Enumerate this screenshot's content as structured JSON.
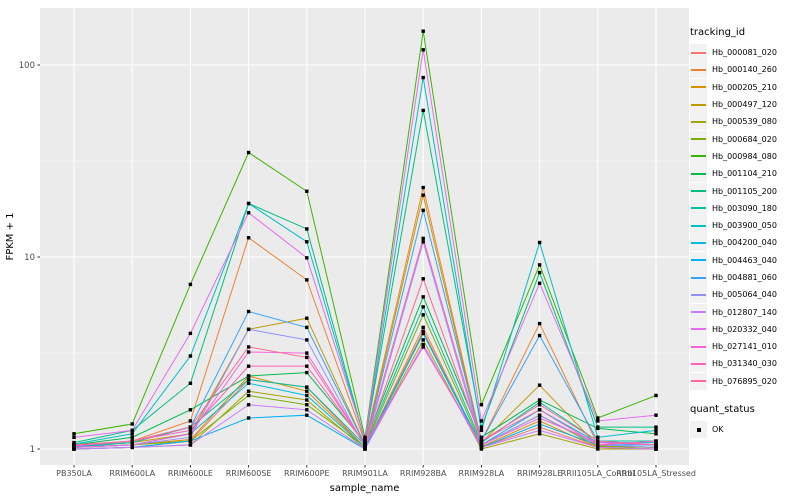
{
  "figure": {
    "background": "#FFFFFF",
    "panel_background": "#EBEBEB",
    "grid_color": "#FFFFFF",
    "tick_color": "#333333",
    "tick_label_color": "#4D4D4D",
    "axis_title_color": "#000000"
  },
  "axes": {
    "x_title": "sample_name",
    "y_title": "FPKM + 1"
  },
  "legend": {
    "color_title": "tracking_id",
    "shape_title": "quant_status",
    "key_background": "#F2F2F2",
    "shape_items": [
      {
        "label": "OK",
        "shape": "square",
        "color": "#000000"
      }
    ]
  },
  "chart_data": {
    "type": "line",
    "title": "",
    "xlabel": "sample_name",
    "ylabel": "FPKM + 1",
    "y_scale": "log10",
    "ylim": [
      0.82,
      198
    ],
    "y_major_ticks": [
      {
        "label": "1",
        "value": 1
      },
      {
        "label": "10",
        "value": 10
      },
      {
        "label": "100",
        "value": 100
      }
    ],
    "y_minor_ticks": [
      3.1623,
      31.623
    ],
    "grid": true,
    "legend_position": "right",
    "point_shape": "square",
    "point_color": "#000000",
    "quant_status": "OK",
    "categories": [
      "PB350LA",
      "RRIM600LA",
      "RRIM600LE",
      "RRIM600SE",
      "RRIM600PE",
      "RRIM901LA",
      "RRIM928BA",
      "RRIM928LA",
      "RRIM928LE",
      "RRII105LA_Control",
      "RRII105LA_Stressed"
    ],
    "series": [
      {
        "name": "Hb_000081_020",
        "color": "#F8766D",
        "values": [
          1.0,
          1.02,
          1.1,
          2.3,
          2.1,
          1.02,
          4.3,
          1.02,
          1.3,
          1.02,
          1.0
        ]
      },
      {
        "name": "Hb_000140_260",
        "color": "#EA8331",
        "values": [
          1.05,
          1.1,
          1.4,
          12.6,
          7.6,
          1.08,
          23.0,
          1.1,
          4.5,
          1.05,
          1.02
        ]
      },
      {
        "name": "Hb_000205_210",
        "color": "#D89000",
        "values": [
          1.02,
          1.05,
          1.12,
          2.4,
          2.0,
          1.02,
          4.1,
          1.03,
          1.4,
          1.02,
          1.0
        ]
      },
      {
        "name": "Hb_000497_120",
        "color": "#C09B00",
        "values": [
          1.03,
          1.08,
          1.2,
          4.2,
          4.8,
          1.05,
          21.0,
          1.08,
          2.15,
          1.04,
          1.02
        ]
      },
      {
        "name": "Hb_000539_080",
        "color": "#A3A500",
        "values": [
          1.0,
          1.02,
          1.05,
          2.0,
          1.8,
          1.0,
          3.7,
          1.0,
          1.2,
          1.0,
          1.0
        ]
      },
      {
        "name": "Hb_000684_020",
        "color": "#7CAE00",
        "values": [
          1.02,
          1.05,
          1.1,
          1.9,
          1.7,
          1.03,
          5.0,
          1.05,
          1.5,
          1.03,
          1.02
        ]
      },
      {
        "name": "Hb_000984_080",
        "color": "#39B600",
        "values": [
          1.2,
          1.35,
          7.2,
          35.0,
          22.0,
          1.15,
          150.0,
          1.7,
          9.1,
          1.45,
          1.9
        ]
      },
      {
        "name": "Hb_001104_210",
        "color": "#00BB4E",
        "values": [
          1.05,
          1.15,
          1.6,
          2.4,
          2.5,
          1.08,
          6.2,
          1.15,
          1.8,
          1.28,
          1.2
        ]
      },
      {
        "name": "Hb_001105_200",
        "color": "#00BF7D",
        "values": [
          1.08,
          1.25,
          2.2,
          19.0,
          14.0,
          1.1,
          58.0,
          1.3,
          8.3,
          1.3,
          1.3
        ]
      },
      {
        "name": "Hb_003090_180",
        "color": "#00C1A3",
        "values": [
          1.02,
          1.08,
          1.3,
          2.3,
          2.1,
          1.05,
          5.5,
          1.08,
          1.75,
          1.1,
          1.1
        ]
      },
      {
        "name": "Hb_003900_050",
        "color": "#00BFC4",
        "values": [
          1.06,
          1.2,
          3.05,
          19.0,
          12.0,
          1.1,
          86.0,
          1.25,
          11.9,
          1.15,
          1.25
        ]
      },
      {
        "name": "Hb_004200_040",
        "color": "#00BAE0",
        "values": [
          1.02,
          1.05,
          1.2,
          2.2,
          1.9,
          1.02,
          4.0,
          1.05,
          1.6,
          1.08,
          1.08
        ]
      },
      {
        "name": "Hb_004463_040",
        "color": "#00B0F6",
        "values": [
          1.0,
          1.02,
          1.1,
          1.45,
          1.5,
          1.0,
          4.0,
          1.02,
          1.35,
          1.05,
          1.05
        ]
      },
      {
        "name": "Hb_004881_060",
        "color": "#35A2FF",
        "values": [
          1.03,
          1.1,
          1.3,
          5.2,
          4.3,
          1.05,
          17.5,
          1.1,
          3.9,
          1.1,
          1.05
        ]
      },
      {
        "name": "Hb_005064_040",
        "color": "#9590FF",
        "values": [
          1.02,
          1.05,
          1.15,
          4.2,
          3.7,
          1.02,
          12.0,
          1.05,
          1.5,
          1.05,
          1.02
        ]
      },
      {
        "name": "Hb_012807_140",
        "color": "#C77CFF",
        "values": [
          1.0,
          1.02,
          1.05,
          1.7,
          1.6,
          1.0,
          3.5,
          1.02,
          1.25,
          1.02,
          1.0
        ]
      },
      {
        "name": "Hb_020332_040",
        "color": "#E76BF3",
        "values": [
          1.15,
          1.25,
          4.0,
          17.0,
          9.9,
          1.12,
          120.0,
          1.4,
          7.3,
          1.4,
          1.5
        ]
      },
      {
        "name": "Hb_027141_010",
        "color": "#FA62DB",
        "values": [
          1.02,
          1.05,
          1.2,
          3.2,
          3.16,
          1.05,
          3.4,
          1.05,
          1.45,
          1.08,
          1.05
        ]
      },
      {
        "name": "Hb_031340_030",
        "color": "#FF62BC",
        "values": [
          1.04,
          1.1,
          1.25,
          2.7,
          2.7,
          1.06,
          12.5,
          1.1,
          1.6,
          1.05,
          1.1
        ]
      },
      {
        "name": "Hb_076895_020",
        "color": "#FF6A98",
        "values": [
          1.05,
          1.1,
          1.3,
          3.4,
          3.0,
          1.05,
          7.7,
          1.1,
          1.7,
          1.1,
          1.05
        ]
      }
    ]
  }
}
